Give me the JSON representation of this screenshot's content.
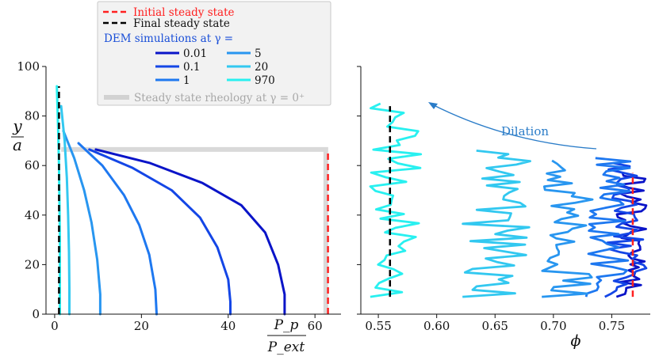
{
  "legend": {
    "initial": "Initial steady state",
    "final": "Final steady state",
    "dem_title": "DEM simulations at γ =",
    "rheology": "Steady state rheology at γ = 0⁺",
    "gamma_labels": [
      "0.01",
      "0.1",
      "1",
      "5",
      "20",
      "970"
    ]
  },
  "annotation": {
    "dilation": "Dilation"
  },
  "colors": {
    "initial": "#ff2020",
    "final": "#000000",
    "rheology": "#d9d9d9",
    "series": [
      "#0a14c8",
      "#1446e6",
      "#1e78f0",
      "#2896f0",
      "#32c8f0",
      "#28f0f0"
    ],
    "dilation_arrow": "#2a7cc8"
  },
  "chart_data": [
    {
      "type": "line",
      "xlabel_num": "P_p",
      "xlabel_den": "P_ext",
      "ylabel_num": "y",
      "ylabel_den": "a",
      "xlim": [
        -2,
        66
      ],
      "ylim": [
        0,
        100
      ],
      "xticks": [
        0,
        20,
        40,
        60
      ],
      "yticks": [
        0,
        20,
        40,
        60,
        80,
        100
      ],
      "reference_lines": {
        "initial": {
          "x": 63,
          "y": [
            0,
            66
          ]
        },
        "final": {
          "x": 1,
          "y": [
            0,
            92
          ]
        },
        "rheology": [
          [
            1.5,
            66.5
          ],
          [
            62.5,
            66.5
          ],
          [
            62.5,
            0
          ]
        ]
      },
      "series": [
        {
          "name": "0.01",
          "points": [
            [
              9.5,
              66.5
            ],
            [
              22,
              61
            ],
            [
              34,
              53
            ],
            [
              43,
              44
            ],
            [
              48.5,
              33
            ],
            [
              51.5,
              20
            ],
            [
              53,
              8
            ],
            [
              53,
              0
            ]
          ]
        },
        {
          "name": "0.1",
          "points": [
            [
              8,
              66.5
            ],
            [
              18,
              59
            ],
            [
              27,
              50
            ],
            [
              33.5,
              39
            ],
            [
              37.5,
              27
            ],
            [
              40,
              14
            ],
            [
              40.5,
              5
            ],
            [
              40.5,
              0
            ]
          ]
        },
        {
          "name": "1",
          "points": [
            [
              5.5,
              69
            ],
            [
              11,
              60
            ],
            [
              16,
              48
            ],
            [
              19.5,
              36
            ],
            [
              21.8,
              24
            ],
            [
              23.2,
              10
            ],
            [
              23.5,
              0
            ]
          ]
        },
        {
          "name": "5",
          "points": [
            [
              2,
              74
            ],
            [
              4.5,
              63
            ],
            [
              6.8,
              50
            ],
            [
              8.5,
              37
            ],
            [
              9.8,
              22
            ],
            [
              10.5,
              8
            ],
            [
              10.5,
              0
            ]
          ]
        },
        {
          "name": "20",
          "points": [
            [
              1.5,
              84
            ],
            [
              2.3,
              70
            ],
            [
              2.8,
              55
            ],
            [
              3.1,
              40
            ],
            [
              3.3,
              25
            ],
            [
              3.4,
              10
            ],
            [
              3.4,
              0
            ]
          ]
        },
        {
          "name": "970",
          "points": [
            [
              0.5,
              92
            ],
            [
              0.8,
              75
            ],
            [
              1.0,
              60
            ],
            [
              1.1,
              45
            ],
            [
              1.2,
              30
            ],
            [
              1.2,
              15
            ],
            [
              1.2,
              0
            ]
          ]
        }
      ]
    },
    {
      "type": "line",
      "xlabel": "ϕ",
      "xlim": [
        0.535,
        0.783
      ],
      "ylim": [
        0,
        100
      ],
      "xticks": [
        0.55,
        0.6,
        0.65,
        0.7,
        0.75
      ],
      "xticklabels": [
        "0.55",
        "0.60",
        "0.65",
        "0.70",
        "0.75"
      ],
      "reference_lines": {
        "initial": {
          "x": 0.768,
          "y": [
            7,
            57
          ]
        },
        "final": {
          "x": 0.56,
          "y": [
            7,
            84
          ]
        }
      },
      "series": [
        {
          "name": "0.01",
          "center": 0.767,
          "amplitude": 0.013,
          "top": 57
        },
        {
          "name": "0.1",
          "center": 0.762,
          "amplitude": 0.018,
          "top": 61
        },
        {
          "name": "1",
          "center": 0.748,
          "amplitude": 0.02,
          "top": 63
        },
        {
          "name": "5",
          "center": 0.712,
          "amplitude": 0.022,
          "top": 62
        },
        {
          "name": "20",
          "center": 0.652,
          "amplitude": 0.03,
          "top": 66
        },
        {
          "name": "970",
          "center": 0.565,
          "amplitude": 0.022,
          "top": 85
        }
      ]
    }
  ]
}
